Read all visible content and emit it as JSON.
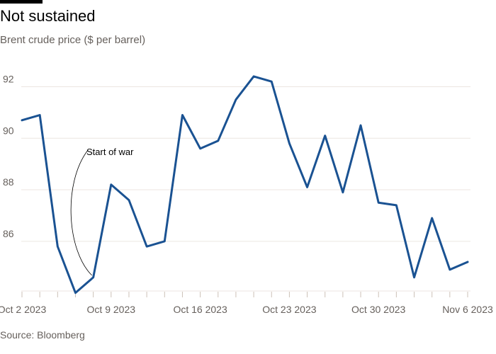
{
  "header": {
    "title": "Not sustained",
    "subtitle": "Brent crude price ($ per barrel)"
  },
  "footer": {
    "source": "Source: Bloomberg"
  },
  "colors": {
    "line": "#1a5292",
    "grid": "#ece6e0",
    "text": "#66605c"
  },
  "chart_data": {
    "type": "line",
    "title": "Not sustained",
    "subtitle": "Brent crude price ($ per barrel)",
    "x_start": "Oct 2 2023",
    "x_step": "1 trading day",
    "x_tick_labels": [
      "Oct 2 2023",
      "Oct 9 2023",
      "Oct 16 2023",
      "Oct 23 2023",
      "Oct 30 2023",
      "Nov 6 2023"
    ],
    "y_ticks": [
      86,
      88,
      90,
      92
    ],
    "ylim": [
      84.1,
      92.7
    ],
    "grid": true,
    "series": [
      {
        "name": "",
        "values": [
          90.7,
          90.9,
          85.8,
          84.0,
          84.6,
          88.2,
          87.6,
          85.8,
          86.0,
          90.9,
          89.6,
          89.9,
          91.5,
          92.4,
          92.2,
          89.8,
          88.1,
          90.1,
          87.9,
          90.5,
          87.5,
          87.4,
          84.6,
          86.9,
          84.9,
          85.2
        ]
      }
    ],
    "annotations": [
      {
        "text": "Start of war",
        "target_index": 4
      }
    ]
  }
}
